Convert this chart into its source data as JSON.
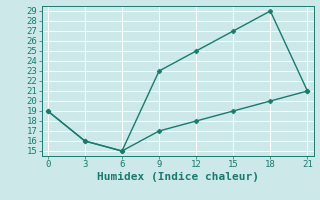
{
  "line1_x": [
    0,
    3,
    6,
    9,
    12,
    15,
    18,
    21
  ],
  "line1_y": [
    19,
    16,
    15,
    23,
    25,
    27,
    29,
    21
  ],
  "line2_x": [
    0,
    3,
    6,
    9,
    12,
    15,
    18,
    21
  ],
  "line2_y": [
    19,
    16,
    15,
    17,
    18,
    19,
    20,
    21
  ],
  "line_color": "#1a7a6e",
  "bg_color": "#cce8e8",
  "grid_color": "#ffffff",
  "xlabel": "Humidex (Indice chaleur)",
  "xlim": [
    -0.5,
    21.5
  ],
  "ylim": [
    14.5,
    29.5
  ],
  "xticks": [
    0,
    3,
    6,
    9,
    12,
    15,
    18,
    21
  ],
  "yticks": [
    15,
    16,
    17,
    18,
    19,
    20,
    21,
    22,
    23,
    24,
    25,
    26,
    27,
    28,
    29
  ],
  "marker": "D",
  "markersize": 2.5,
  "linewidth": 1.0,
  "xlabel_fontsize": 8,
  "tick_fontsize": 6.5
}
